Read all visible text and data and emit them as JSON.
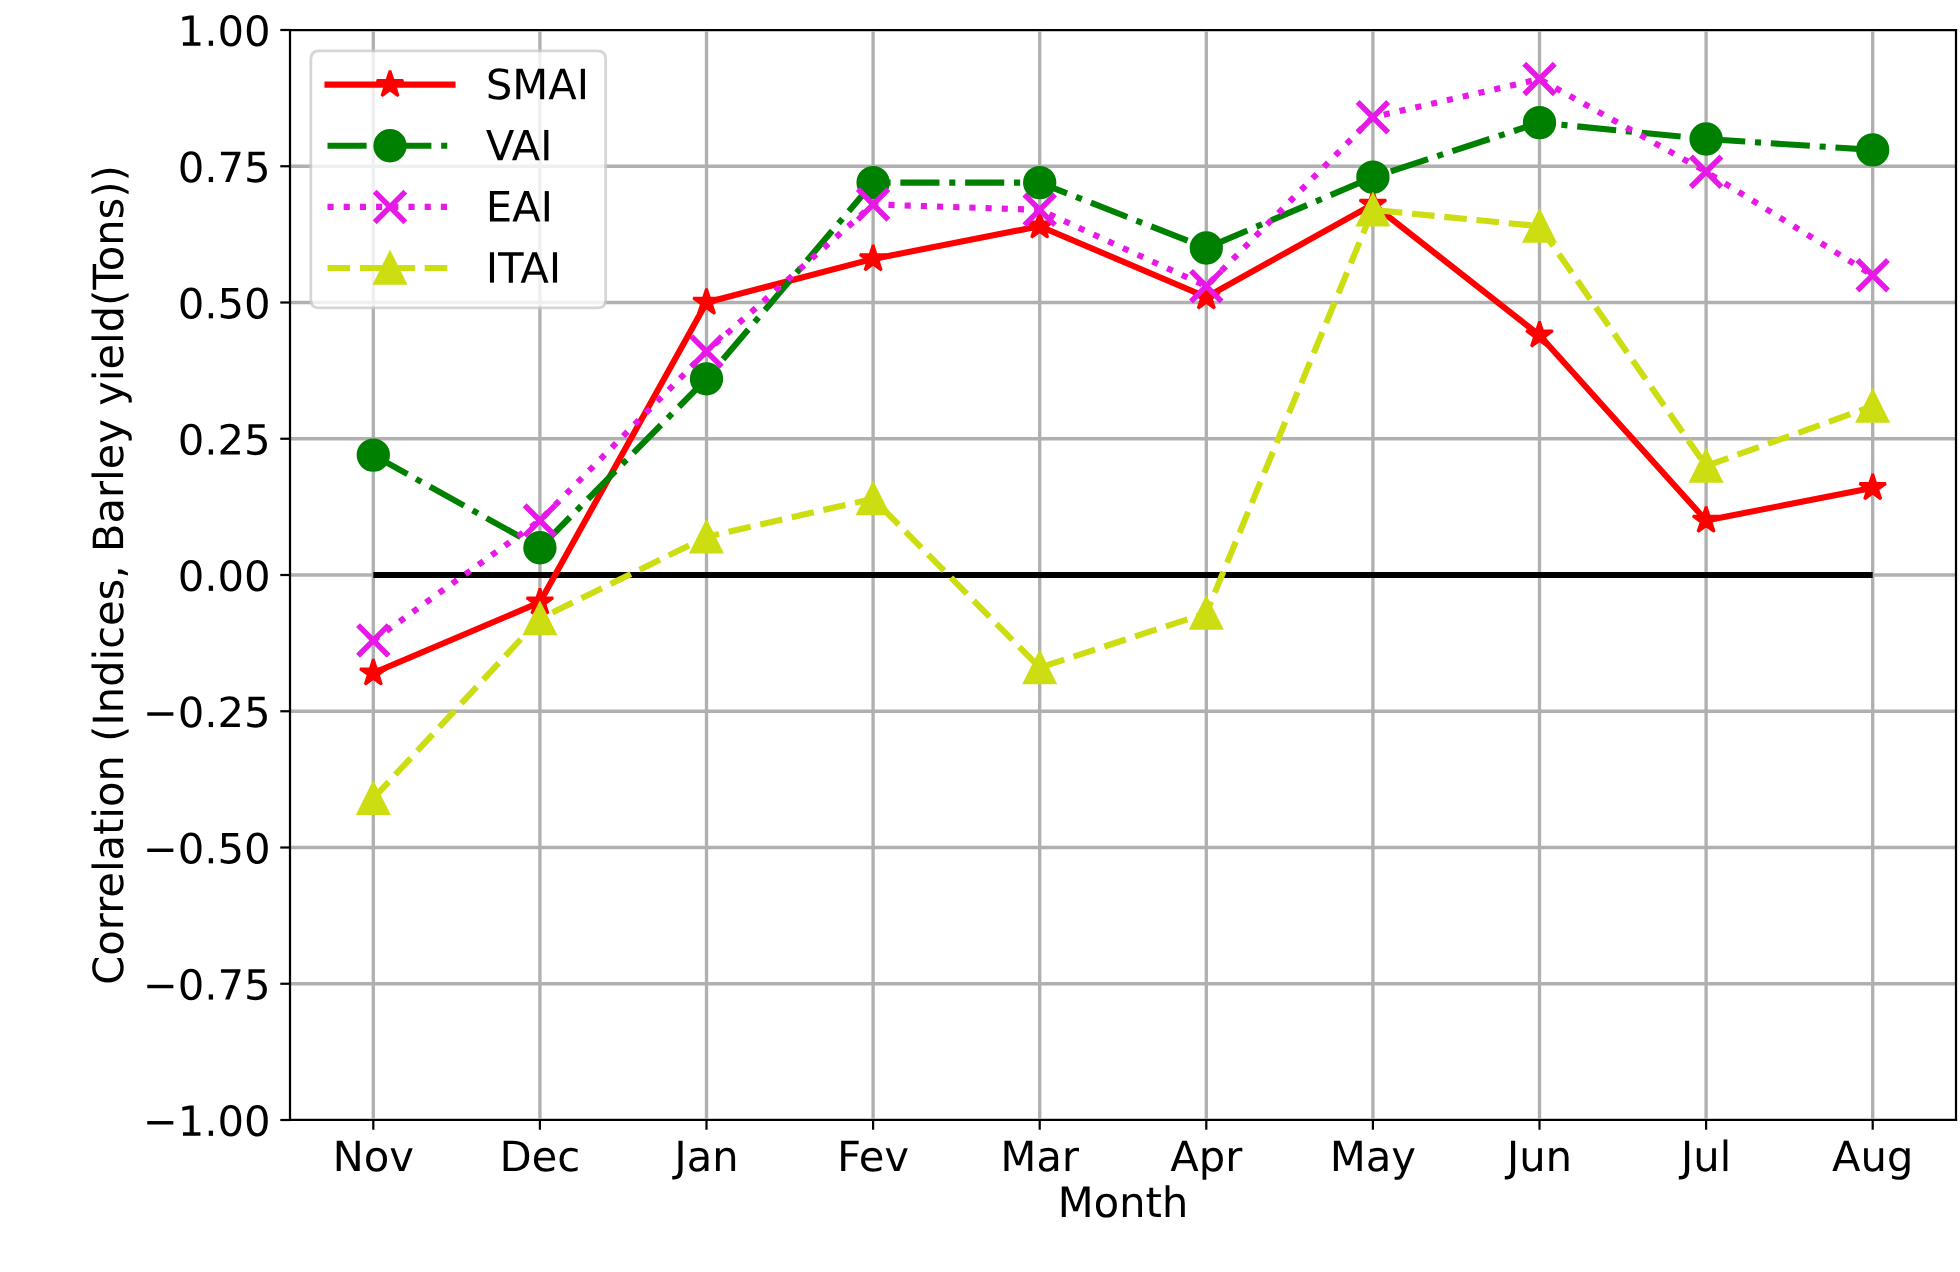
{
  "chart_data": {
    "type": "line",
    "xlabel": "Month",
    "ylabel": "Correlation (Indices, Barley yield(Tons))",
    "categories": [
      "Nov",
      "Dec",
      "Jan",
      "Fev",
      "Mar",
      "Apr",
      "May",
      "Jun",
      "Jul",
      "Aug"
    ],
    "series": [
      {
        "name": "SMAI",
        "color": "#ff0000",
        "marker": "star",
        "line_style": "solid",
        "values": [
          -0.18,
          -0.05,
          0.5,
          0.58,
          0.64,
          0.51,
          0.68,
          0.44,
          0.1,
          0.16
        ]
      },
      {
        "name": "VAI",
        "color": "#008000",
        "marker": "circle",
        "line_style": "dashdot",
        "values": [
          0.22,
          0.05,
          0.36,
          0.72,
          0.72,
          0.6,
          0.73,
          0.83,
          0.8,
          0.78
        ]
      },
      {
        "name": "EAI",
        "color": "#e619e6",
        "marker": "cross",
        "line_style": "dotted",
        "values": [
          -0.12,
          0.1,
          0.41,
          0.68,
          0.67,
          0.53,
          0.84,
          0.91,
          0.74,
          0.55
        ]
      },
      {
        "name": "ITAI",
        "color": "#ccdd11",
        "marker": "triangle",
        "line_style": "dashed",
        "values": [
          -0.41,
          -0.08,
          0.07,
          0.14,
          -0.17,
          -0.07,
          0.67,
          0.64,
          0.2,
          0.31
        ]
      }
    ],
    "ref_lines": [
      {
        "axis": "y",
        "value": 0,
        "color": "#000000",
        "line_style": "solid"
      }
    ],
    "ylim": [
      -1.0,
      1.0
    ],
    "yticks": [
      {
        "value": -1.0,
        "label": "−1.00"
      },
      {
        "value": -0.75,
        "label": "−0.75"
      },
      {
        "value": -0.5,
        "label": "−0.50"
      },
      {
        "value": -0.25,
        "label": "−0.25"
      },
      {
        "value": 0,
        "label": "0.00"
      },
      {
        "value": 0.25,
        "label": "0.25"
      },
      {
        "value": 0.5,
        "label": "0.50"
      },
      {
        "value": 0.75,
        "label": "0.75"
      },
      {
        "value": 1.0,
        "label": "1.00"
      }
    ],
    "grid": true,
    "legend": "top left"
  }
}
